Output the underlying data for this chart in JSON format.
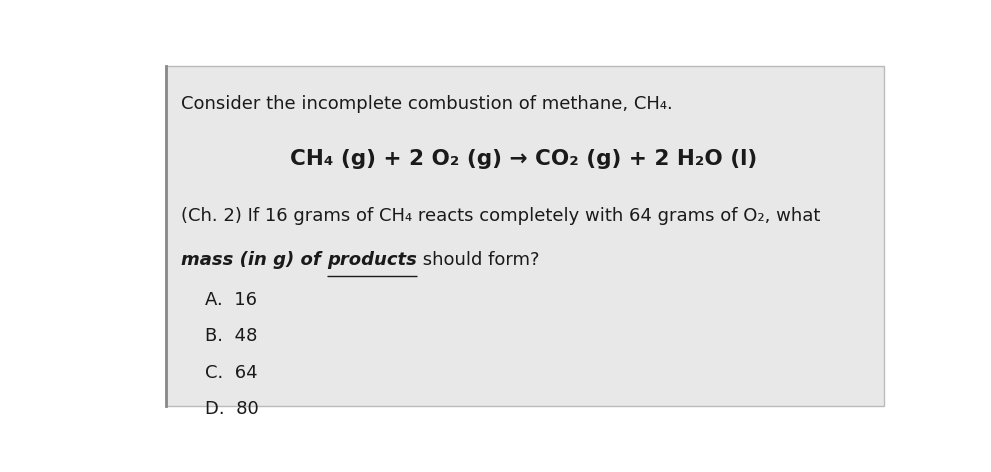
{
  "outer_bg": "#ffffff",
  "card_bg": "#e8e8e8",
  "inner_bg": "#e8e8e8",
  "text_color": "#1a1a1a",
  "border_color": "#aaaaaa",
  "line1": "Consider the incomplete combustion of methane, CH₄.",
  "equation": "CH₄ (g) + 2 O₂ (g) → CO₂ (g) + 2 H₂O (l)",
  "q_line1": "(Ch. 2) If 16 grams of CH₄ reacts completely with 64 grams of O₂, what",
  "q_line2_bold_italic": "mass (in g) of ",
  "q_line2_underlined": "products",
  "q_line2_normal": " should form?",
  "choices": [
    "A.  16",
    "B.  48",
    "C.  64",
    "D.  80"
  ],
  "line1_fs": 13.0,
  "equation_fs": 15.5,
  "question_fs": 13.0,
  "choices_fs": 13.0,
  "left_border_color": "#888888"
}
